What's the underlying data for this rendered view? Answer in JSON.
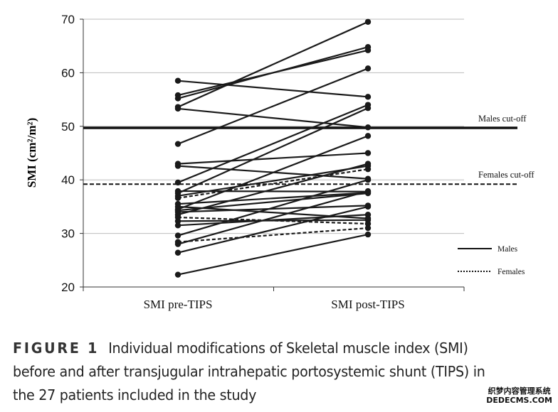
{
  "chart_data": {
    "type": "line",
    "title": "",
    "xlabel": "",
    "ylabel": "SMI (cm²/m²)",
    "ylim": [
      20,
      70
    ],
    "yticks": [
      20,
      30,
      40,
      50,
      60,
      70
    ],
    "categories": [
      "SMI pre-TIPS",
      "SMI post-TIPS"
    ],
    "grid": true,
    "legend": {
      "position": "bottom-right",
      "entries": [
        {
          "label": "Males",
          "style": "solid"
        },
        {
          "label": "Females",
          "style": "dotted"
        }
      ]
    },
    "cutoffs": [
      {
        "label": "Males cut-off",
        "value": 49.7,
        "style": "solid"
      },
      {
        "label": "Females cut-off",
        "value": 39.2,
        "style": "dashed"
      }
    ],
    "series": [
      {
        "sex": "M",
        "values": [
          58.5,
          55.5
        ]
      },
      {
        "sex": "M",
        "values": [
          55.8,
          64.2
        ]
      },
      {
        "sex": "M",
        "values": [
          55.2,
          64.8
        ]
      },
      {
        "sex": "M",
        "values": [
          53.6,
          69.5
        ]
      },
      {
        "sex": "M",
        "values": [
          53.3,
          49.8
        ]
      },
      {
        "sex": "M",
        "values": [
          46.7,
          60.8
        ]
      },
      {
        "sex": "M",
        "values": [
          43.0,
          45.0
        ]
      },
      {
        "sex": "M",
        "values": [
          42.6,
          40.2
        ]
      },
      {
        "sex": "M",
        "values": [
          39.5,
          54.0
        ]
      },
      {
        "sex": "M",
        "values": [
          37.9,
          37.8
        ]
      },
      {
        "sex": "M",
        "values": [
          37.5,
          53.4
        ]
      },
      {
        "sex": "M",
        "values": [
          37.0,
          42.6
        ]
      },
      {
        "sex": "F",
        "values": [
          36.6,
          42.0
        ]
      },
      {
        "sex": "M",
        "values": [
          35.5,
          37.6
        ]
      },
      {
        "sex": "M",
        "values": [
          35.0,
          32.8
        ]
      },
      {
        "sex": "M",
        "values": [
          34.5,
          48.2
        ]
      },
      {
        "sex": "M",
        "values": [
          34.3,
          37.5
        ]
      },
      {
        "sex": "M",
        "values": [
          34.0,
          35.2
        ]
      },
      {
        "sex": "M",
        "values": [
          33.5,
          43.0
        ]
      },
      {
        "sex": "F",
        "values": [
          33.0,
          31.8
        ]
      },
      {
        "sex": "M",
        "values": [
          32.3,
          32.5
        ]
      },
      {
        "sex": "M",
        "values": [
          31.5,
          33.5
        ]
      },
      {
        "sex": "M",
        "values": [
          29.6,
          40.0
        ]
      },
      {
        "sex": "F",
        "values": [
          28.4,
          31.0
        ]
      },
      {
        "sex": "M",
        "values": [
          28.0,
          37.9
        ]
      },
      {
        "sex": "M",
        "values": [
          26.4,
          35.0
        ]
      },
      {
        "sex": "M",
        "values": [
          22.3,
          29.8
        ]
      }
    ]
  },
  "caption": {
    "label": "FIGURE 1",
    "text": "Individual modifications of Skeletal muscle index (SMI) before and after transjugular intrahepatic portosystemic shunt (TIPS) in the 27 patients included in the study"
  },
  "watermark": {
    "line1": "织梦内容管理系统",
    "line2": "DEDECMS.COM"
  },
  "colors": {
    "line": "#1a1a1a",
    "grid": "#bdbdbd",
    "caption_label": "#333333"
  }
}
